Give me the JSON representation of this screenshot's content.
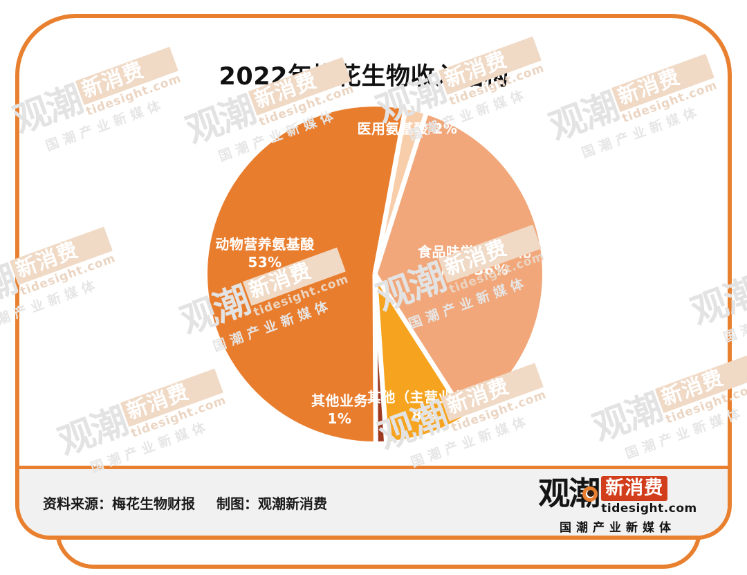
{
  "page": {
    "title": "2022年梅花生物收入结构"
  },
  "chart_data": {
    "type": "pie",
    "title": "2022年梅花生物收入结构",
    "start_angle_deg": 10.5,
    "direction": "clockwise",
    "legend_position": "labels-on-slices",
    "slices": [
      {
        "label": "医用氨基酸",
        "value": 2,
        "color": "#F8CDA9"
      },
      {
        "label": "食品味觉性状优化产品",
        "value": 36,
        "color": "#F1A77A"
      },
      {
        "label": "其他（主营业务）",
        "value": 8,
        "color": "#F6A41F"
      },
      {
        "label": "其他业务",
        "value": 1,
        "color": "#9E3920"
      },
      {
        "label": "动物营养氨基酸",
        "value": 53,
        "color": "#E97D2E"
      }
    ],
    "labels_on_chart": [
      {
        "text": "医用氨基酸 2%"
      },
      {
        "text": "食品味觉性状优化\n产品  36%"
      },
      {
        "text": "动物营养氨基酸\n53%"
      },
      {
        "text": "其他业务\n1%"
      },
      {
        "text": "其他（主营业务）\n8%"
      }
    ]
  },
  "footer": {
    "source": "资料来源：梅花生物财报",
    "credit": "制图：观潮新消费"
  },
  "logo": {
    "part1": "观潮",
    "part2": "新消费",
    "domain": "tidesight.com",
    "tagline": "国潮产业新媒体"
  },
  "watermark": {
    "part1": "观潮",
    "part2": "新消费",
    "domain": "tidesight.com",
    "tagline": "国潮产业新媒体"
  },
  "colors": {
    "frame_orange": "#E8802F",
    "footer_bg": "#F1F1F1",
    "logo_red": "#D23E1B",
    "slice_gap": "#FFFFFF",
    "text_dark": "#1A1A1A"
  }
}
